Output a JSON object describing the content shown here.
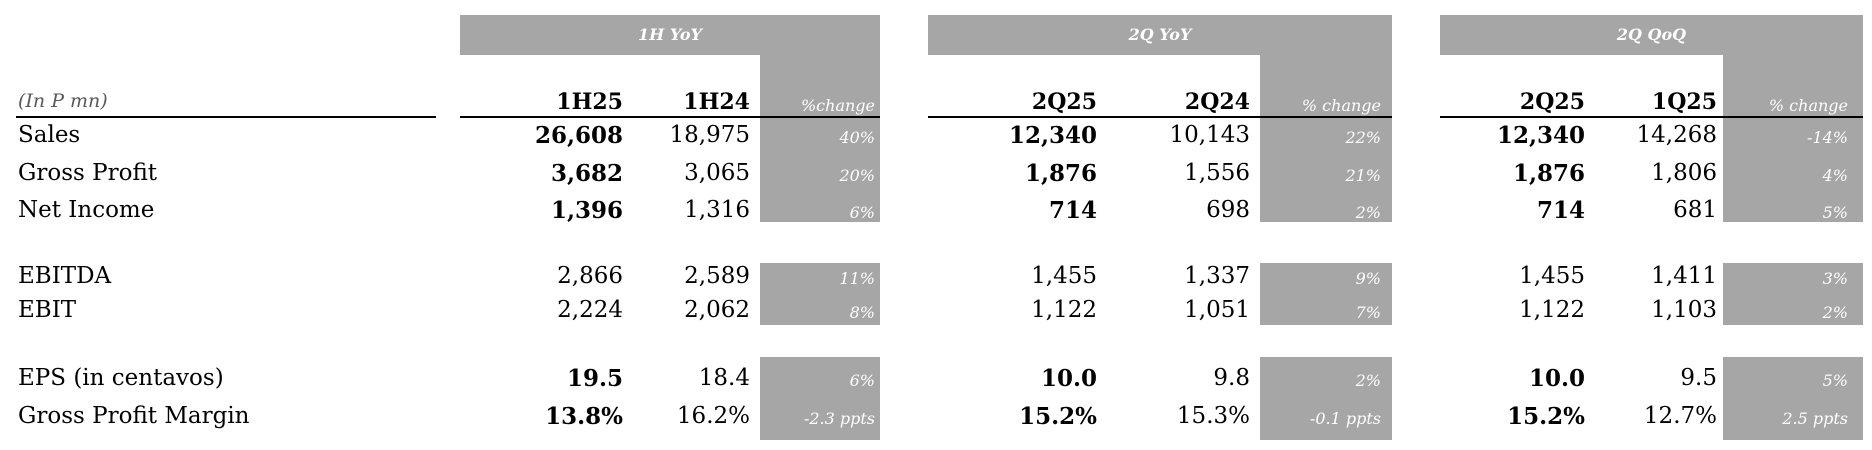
{
  "unit_label": "(In P mn)",
  "sections": [
    {
      "title": "1H YoY",
      "col_current": "1H25",
      "col_prior": "1H24",
      "col_change": "%change"
    },
    {
      "title": "2Q YoY",
      "col_current": "2Q25",
      "col_prior": "2Q24",
      "col_change": "% change"
    },
    {
      "title": "2Q QoQ",
      "col_current": "2Q25",
      "col_prior": "1Q25",
      "col_change": "% change"
    }
  ],
  "rows": [
    {
      "label": "Sales",
      "bold": true,
      "group": 0,
      "values": [
        [
          "26,608",
          "18,975",
          "40%"
        ],
        [
          "12,340",
          "10,143",
          "22%"
        ],
        [
          "12,340",
          "14,268",
          "-14%"
        ]
      ]
    },
    {
      "label": "Gross Profit",
      "bold": true,
      "group": 0,
      "values": [
        [
          "3,682",
          "3,065",
          "20%"
        ],
        [
          "1,876",
          "1,556",
          "21%"
        ],
        [
          "1,876",
          "1,806",
          "4%"
        ]
      ]
    },
    {
      "label": "Net Income",
      "bold": true,
      "group": 0,
      "values": [
        [
          "1,396",
          "1,316",
          "6%"
        ],
        [
          "714",
          "698",
          "2%"
        ],
        [
          "714",
          "681",
          "5%"
        ]
      ]
    },
    {
      "label": "EBITDA",
      "bold": false,
      "group": 1,
      "values": [
        [
          "2,866",
          "2,589",
          "11%"
        ],
        [
          "1,455",
          "1,337",
          "9%"
        ],
        [
          "1,455",
          "1,411",
          "3%"
        ]
      ]
    },
    {
      "label": "EBIT",
      "bold": false,
      "group": 1,
      "values": [
        [
          "2,224",
          "2,062",
          "8%"
        ],
        [
          "1,122",
          "1,051",
          "7%"
        ],
        [
          "1,122",
          "1,103",
          "2%"
        ]
      ]
    },
    {
      "label": "EPS (in centavos)",
      "bold": true,
      "group": 2,
      "values": [
        [
          "19.5",
          "18.4",
          "6%"
        ],
        [
          "10.0",
          "9.8",
          "2%"
        ],
        [
          "10.0",
          "9.5",
          "5%"
        ]
      ]
    },
    {
      "label": "Gross Profit Margin",
      "bold": true,
      "group": 2,
      "values": [
        [
          "13.8%",
          "16.2%",
          "-2.3 ppts"
        ],
        [
          "15.2%",
          "15.3%",
          "-0.1 ppts"
        ],
        [
          "15.2%",
          "12.7%",
          "2.5 ppts"
        ]
      ]
    }
  ]
}
